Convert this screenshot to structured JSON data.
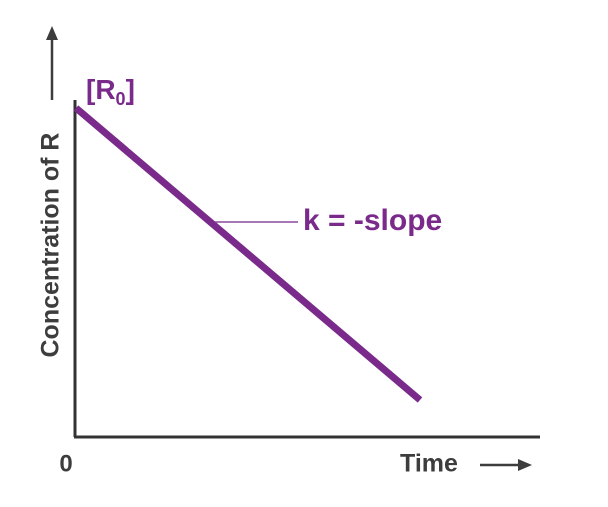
{
  "y_axis": {
    "label": "Concentration of R"
  },
  "x_axis": {
    "label": "Time",
    "origin": "0"
  },
  "initial_label": {
    "open": "[R",
    "subscript": "0",
    "close": "]"
  },
  "slope_label": "k = -slope"
}
